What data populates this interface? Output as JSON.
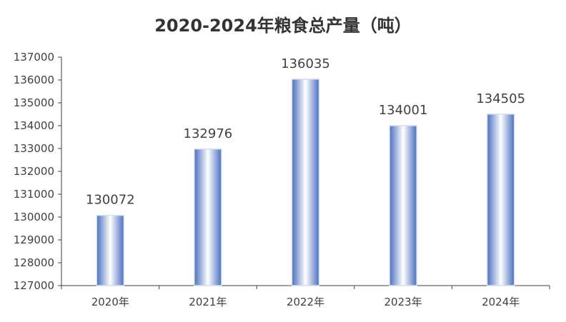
{
  "chart_data": {
    "type": "bar",
    "title": "2020-2024年粮食总产量（吨）",
    "xlabel": "",
    "ylabel": "",
    "categories": [
      "2020年",
      "2021年",
      "2022年",
      "2023年",
      "2024年"
    ],
    "values": [
      130072,
      132976,
      136035,
      134001,
      134505
    ],
    "ylim": [
      127000,
      137000
    ],
    "yticks": [
      127000,
      128000,
      129000,
      130000,
      131000,
      132000,
      133000,
      134000,
      135000,
      136000,
      137000
    ],
    "grid": false,
    "legend": "none",
    "data_labels": true,
    "colors": {
      "bar_edge": "#4a6fc0",
      "bar_center": "#ffffff",
      "bar_border": "#d6ddf0",
      "axis": "#404040",
      "text": "#404040",
      "title": "#333333"
    }
  }
}
